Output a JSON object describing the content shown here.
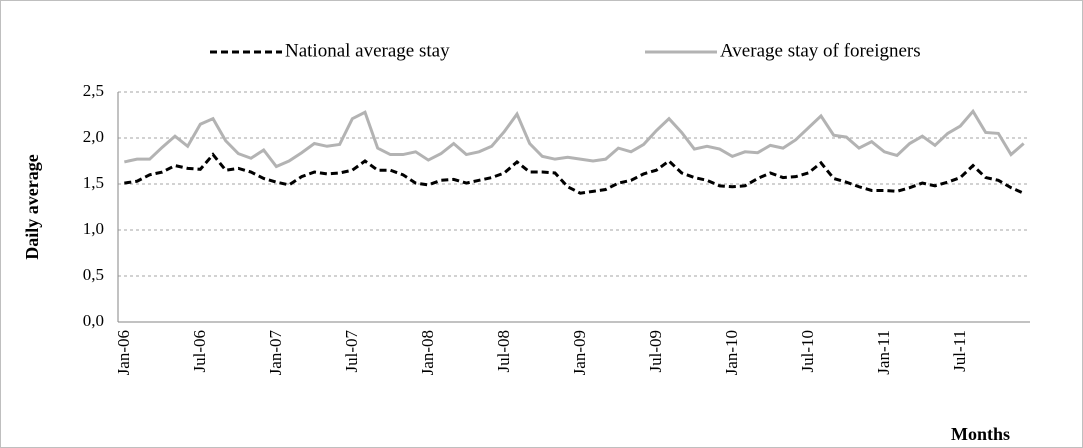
{
  "chart_data": {
    "type": "line",
    "y_label": "Daily average",
    "x_label": "Months",
    "categories": [
      "Jan-06",
      null,
      null,
      null,
      null,
      null,
      "Jul-06",
      null,
      null,
      null,
      null,
      null,
      "Jan-07",
      null,
      null,
      null,
      null,
      null,
      "Jul-07",
      null,
      null,
      null,
      null,
      null,
      "Jan-08",
      null,
      null,
      null,
      null,
      null,
      "Jul-08",
      null,
      null,
      null,
      null,
      null,
      "Jan-09",
      null,
      null,
      null,
      null,
      null,
      "Jul-09",
      null,
      null,
      null,
      null,
      null,
      "Jan-10",
      null,
      null,
      null,
      null,
      null,
      "Jul-10",
      null,
      null,
      null,
      null,
      null,
      "Jan-11",
      null,
      null,
      null,
      null,
      null,
      "Jul-11",
      null,
      null,
      null,
      null,
      null
    ],
    "series": [
      {
        "name": "National average stay",
        "color": "#000000",
        "line_style": "dashed",
        "values": [
          1.51,
          1.53,
          1.6,
          1.63,
          1.7,
          1.67,
          1.66,
          1.82,
          1.65,
          1.67,
          1.63,
          1.56,
          1.52,
          1.49,
          1.58,
          1.63,
          1.61,
          1.62,
          1.65,
          1.75,
          1.65,
          1.65,
          1.6,
          1.51,
          1.49,
          1.54,
          1.55,
          1.51,
          1.54,
          1.57,
          1.62,
          1.74,
          1.63,
          1.63,
          1.62,
          1.47,
          1.4,
          1.42,
          1.44,
          1.51,
          1.54,
          1.61,
          1.65,
          1.75,
          1.62,
          1.57,
          1.54,
          1.48,
          1.47,
          1.48,
          1.56,
          1.62,
          1.57,
          1.58,
          1.62,
          1.73,
          1.56,
          1.52,
          1.47,
          1.43,
          1.43,
          1.42,
          1.46,
          1.51,
          1.48,
          1.52,
          1.57,
          1.7,
          1.57,
          1.54,
          1.46,
          1.4
        ]
      },
      {
        "name": "Average stay of foreigners",
        "color": "#b3b3b3",
        "line_style": "solid",
        "values": [
          1.74,
          1.77,
          1.77,
          1.9,
          2.02,
          1.91,
          2.15,
          2.21,
          1.97,
          1.83,
          1.78,
          1.87,
          1.69,
          1.75,
          1.84,
          1.94,
          1.91,
          1.93,
          2.21,
          2.28,
          1.89,
          1.82,
          1.82,
          1.85,
          1.76,
          1.83,
          1.94,
          1.82,
          1.85,
          1.91,
          2.07,
          2.26,
          1.94,
          1.8,
          1.77,
          1.79,
          1.77,
          1.75,
          1.77,
          1.89,
          1.85,
          1.93,
          2.08,
          2.21,
          2.06,
          1.88,
          1.91,
          1.88,
          1.8,
          1.85,
          1.84,
          1.92,
          1.89,
          1.98,
          2.11,
          2.24,
          2.03,
          2.01,
          1.89,
          1.96,
          1.85,
          1.81,
          1.94,
          2.02,
          1.92,
          2.05,
          2.13,
          2.29,
          2.06,
          2.05,
          1.82,
          1.94
        ]
      }
    ],
    "ylim": [
      0,
      2.5
    ],
    "yticks": [
      {
        "value": 0,
        "label": "0,0"
      },
      {
        "value": 0.5,
        "label": "0,5"
      },
      {
        "value": 1,
        "label": "1,0"
      },
      {
        "value": 1.5,
        "label": "1,5"
      },
      {
        "value": 2,
        "label": "2,0"
      },
      {
        "value": 2.5,
        "label": "2,5"
      }
    ],
    "grid": true,
    "legend_position": "top"
  }
}
